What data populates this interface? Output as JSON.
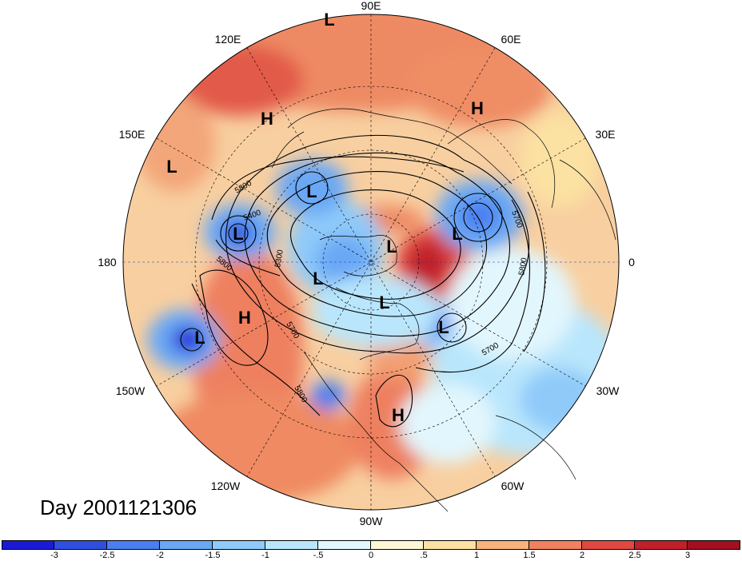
{
  "title": "Day 2001121306",
  "map": {
    "projection": "north-polar-stereographic",
    "longitude_labels": [
      "90E",
      "60E",
      "30E",
      "0",
      "30W",
      "60W",
      "90W",
      "120W",
      "150W",
      "180",
      "150E",
      "120E"
    ],
    "contour_labels": [
      "5800",
      "5400",
      "5300",
      "5800",
      "5700",
      "5800",
      "5700",
      "5700",
      "5800"
    ],
    "systems": [
      "L",
      "H",
      "L",
      "L",
      "H",
      "L",
      "L",
      "L",
      "L",
      "L",
      "L",
      "H",
      "L",
      "H"
    ]
  },
  "colorbar": {
    "tick_labels": [
      "-3",
      "-2.5",
      "-2",
      "-1.5",
      "-1",
      "-.5",
      "0",
      ".5",
      "1",
      "1.5",
      "2",
      "2.5",
      "3"
    ],
    "colors": [
      "#1a1ad6",
      "#2f4fe0",
      "#4a7ff0",
      "#6aa8f5",
      "#8fcaf9",
      "#b9e6fc",
      "#e2f6fd",
      "#fdf7d6",
      "#fbe1a2",
      "#f7b27e",
      "#f08060",
      "#e04842",
      "#c0202a",
      "#a0101e"
    ]
  }
}
